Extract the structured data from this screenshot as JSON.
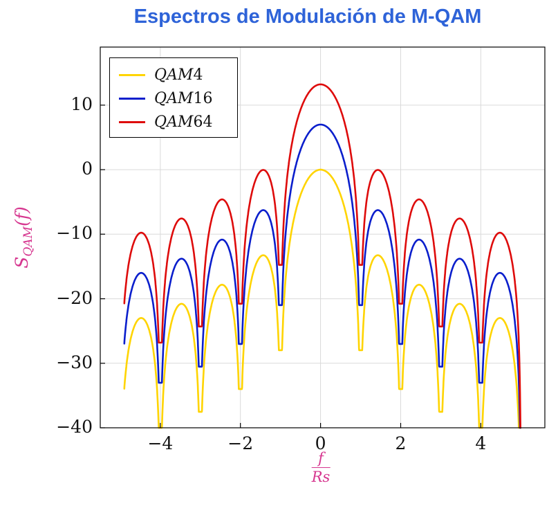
{
  "colors": {
    "title": "#2E63D8",
    "axis_label": "#D6368F",
    "grid": "#D9D9D9",
    "frame": "#000000",
    "background": "#FFFFFF"
  },
  "chart_data": {
    "type": "line",
    "title": "Espectros de Modulación de M-QAM",
    "ylabel": {
      "base": "S",
      "subscript": "QAM",
      "argument": "(f)"
    },
    "xlabel": {
      "numerator": "f",
      "denominator": "Rs"
    },
    "xlim": [
      -5.5,
      5.6
    ],
    "ylim": [
      -40,
      19
    ],
    "xticks": [
      -4,
      -2,
      0,
      2,
      4
    ],
    "yticks": [
      10,
      0,
      -10,
      -20,
      -30,
      -40
    ],
    "grid": "major",
    "legend_position": "top-left",
    "model": "S(f) = offset_db + 10*log10(sinc^2(f/Rs)),  sinc(u) = sin(pi*u)/(pi*u)",
    "x_range": [
      -4.9,
      4.99
    ],
    "nulls_at": [
      -4,
      -3,
      -2,
      -1,
      1,
      2,
      3,
      4
    ],
    "sidelobe_peak_positions": [
      1.43,
      2.46,
      3.47,
      4.48
    ],
    "notch_floor_amplitude": 0.0399,
    "series": [
      {
        "name": "QAM4",
        "label_prefix": "QAM",
        "label_number": "4",
        "color": "#FFD400",
        "offset_db": 0,
        "peak_db": 0,
        "first_sidelobe_db": -13.3,
        "edge_value_db": -33.9
      },
      {
        "name": "QAM16",
        "label_prefix": "QAM",
        "label_number": "16",
        "color": "#0A1ECC",
        "offset_db": 6.99,
        "peak_db": 7,
        "first_sidelobe_db": -6.3,
        "edge_value_db": -26.9
      },
      {
        "name": "QAM64",
        "label_prefix": "QAM",
        "label_number": "64",
        "color": "#DE0B0B",
        "offset_db": 13.22,
        "peak_db": 13.2,
        "first_sidelobe_db": 0,
        "edge_value_db": -20.7
      }
    ]
  }
}
